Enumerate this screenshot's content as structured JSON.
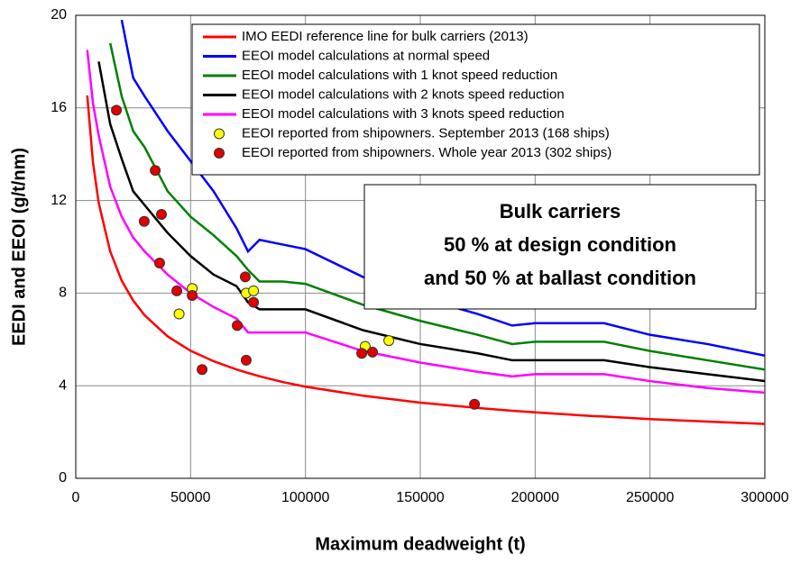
{
  "chart_data": {
    "type": "line",
    "x_label": "Maximum deadweight (t)",
    "y_label": "EEDI and EEOI (g/t/nm)",
    "annotation": [
      "Bulk carriers",
      "50 % at design condition",
      "and 50 % at ballast condition"
    ],
    "x": [
      5000,
      7500,
      10000,
      15000,
      20000,
      25000,
      30000,
      40000,
      50000,
      60000,
      70000,
      75000,
      80000,
      90000,
      100000,
      125000,
      150000,
      175000,
      190000,
      200000,
      225000,
      230000,
      250000,
      275000,
      300000
    ],
    "series": [
      {
        "name": "IMO EEDI reference line for bulk carriers (2013)",
        "color": "#ff0000",
        "values": [
          16.54,
          13.64,
          11.89,
          9.8,
          8.54,
          7.68,
          7.04,
          6.13,
          5.51,
          5.06,
          4.7,
          4.55,
          4.41,
          4.16,
          3.96,
          3.57,
          3.27,
          3.04,
          2.92,
          2.85,
          2.69,
          2.67,
          2.56,
          2.45,
          2.35
        ]
      },
      {
        "name": "EEOI model calculations at normal speed",
        "color": "#0000ff",
        "values": [
          null,
          null,
          null,
          null,
          19.8,
          17.3,
          16.5,
          15.0,
          13.7,
          12.4,
          10.8,
          9.8,
          10.3,
          10.1,
          9.9,
          8.7,
          7.8,
          7.1,
          6.6,
          6.7,
          6.7,
          6.7,
          6.2,
          5.8,
          5.3
        ]
      },
      {
        "name": "EEOI model calculations with 1 knot speed reduction",
        "color": "#008000",
        "values": [
          null,
          null,
          null,
          18.8,
          16.5,
          15.0,
          14.3,
          12.4,
          11.3,
          10.5,
          9.6,
          9.0,
          8.5,
          8.5,
          8.4,
          7.5,
          6.8,
          6.2,
          5.8,
          5.9,
          5.9,
          5.9,
          5.5,
          5.1,
          4.7
        ]
      },
      {
        "name": "EEOI model calculations with 2 knots speed reduction",
        "color": "#000000",
        "values": [
          null,
          null,
          18.0,
          15.3,
          13.8,
          12.4,
          11.8,
          10.6,
          9.6,
          8.8,
          8.3,
          7.6,
          7.3,
          7.3,
          7.3,
          6.4,
          5.8,
          5.4,
          5.1,
          5.1,
          5.1,
          5.1,
          4.8,
          4.5,
          4.2
        ]
      },
      {
        "name": "EEOI model calculations with 3 knots speed reduction",
        "color": "#ff00ff",
        "values": [
          18.5,
          16.2,
          14.8,
          12.6,
          11.3,
          10.4,
          9.8,
          8.8,
          8.0,
          7.4,
          6.9,
          6.3,
          6.3,
          6.3,
          6.3,
          5.5,
          5.0,
          4.6,
          4.4,
          4.5,
          4.5,
          4.5,
          4.2,
          3.9,
          3.7
        ]
      },
      {
        "name": "EEOI reported from shipowners. September 2013 (168 ships)",
        "color": "#ffff00",
        "type": "scatter",
        "x": [
          45000,
          50700,
          74200,
          77400,
          126000,
          136300
        ],
        "values": [
          7.1,
          8.2,
          8.0,
          8.1,
          5.7,
          5.95
        ]
      },
      {
        "name": "EEOI reported from shipowners. Whole year 2013 (302 ships)",
        "color": "#e00000",
        "type": "scatter",
        "x": [
          17700,
          34600,
          29800,
          37300,
          36500,
          44000,
          50700,
          73800,
          77400,
          70300,
          55000,
          74200,
          124500,
          129200,
          173600
        ],
        "values": [
          15.9,
          13.3,
          11.1,
          11.4,
          9.3,
          8.1,
          7.9,
          8.7,
          7.6,
          6.6,
          4.7,
          5.1,
          5.4,
          5.45,
          3.2
        ]
      }
    ],
    "xlim": [
      0,
      300000
    ],
    "xticks": [
      0,
      50000,
      100000,
      150000,
      200000,
      250000,
      300000
    ],
    "ylim": [
      0,
      20
    ],
    "yticks": [
      0,
      4,
      8,
      12,
      16,
      20
    ],
    "grid": true,
    "legend": "top-right"
  }
}
